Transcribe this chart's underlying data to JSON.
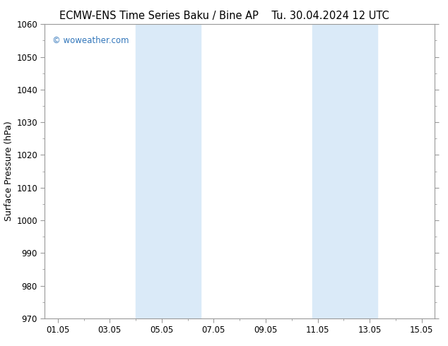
{
  "title_left": "ECMW-ENS Time Series Baku / Bine AP",
  "title_right": "Tu. 30.04.2024 12 UTC",
  "ylabel": "Surface Pressure (hPa)",
  "ylim": [
    970,
    1060
  ],
  "ytick_step": 10,
  "xtick_labels": [
    "01.05",
    "03.05",
    "05.05",
    "07.05",
    "09.05",
    "11.05",
    "13.05",
    "15.05"
  ],
  "xtick_days": [
    0,
    2,
    4,
    6,
    8,
    10,
    12,
    14
  ],
  "xlim": [
    -0.5,
    14.5
  ],
  "shade_bands": [
    {
      "start_day": 3.0,
      "end_day": 5.5
    },
    {
      "start_day": 9.8,
      "end_day": 12.3
    }
  ],
  "shade_color": "#daeaf8",
  "shade_alpha": 1.0,
  "watermark": "© woweather.com",
  "watermark_color": "#3377bb",
  "bg_color": "#ffffff",
  "plot_bg_color": "#ffffff",
  "title_fontsize": 10.5,
  "axis_label_fontsize": 9,
  "tick_fontsize": 8.5,
  "watermark_fontsize": 8.5,
  "spine_color": "#999999",
  "tick_color": "#999999"
}
